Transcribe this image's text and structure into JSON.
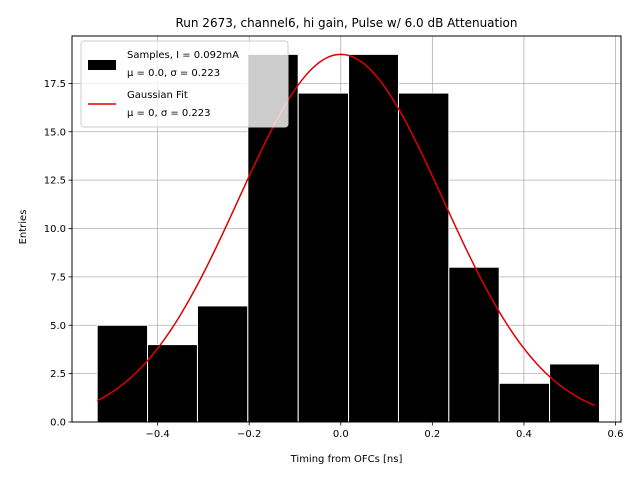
{
  "chart_data": {
    "type": "bar",
    "title": "Run 2673, channel6, hi gain, Pulse w/ 6.0 dB Attenuation",
    "xlabel": "Timing from OFCs [ns]",
    "ylabel": "Entries",
    "xlim": [
      -0.587,
      0.612
    ],
    "ylim": [
      0,
      19.95
    ],
    "x_ticks": [
      -0.4,
      -0.2,
      0.0,
      0.2,
      0.4,
      0.6
    ],
    "x_tick_labels": [
      "−0.4",
      "−0.2",
      "0.0",
      "0.2",
      "0.4",
      "0.6"
    ],
    "y_ticks": [
      0.0,
      2.5,
      5.0,
      7.5,
      10.0,
      12.5,
      15.0,
      17.5
    ],
    "y_tick_labels": [
      "0.0",
      "2.5",
      "5.0",
      "7.5",
      "10.0",
      "12.5",
      "15.0",
      "17.5"
    ],
    "grid": true,
    "bin_edges": [
      -0.532,
      -0.422,
      -0.313,
      -0.203,
      -0.093,
      0.017,
      0.126,
      0.236,
      0.346,
      0.456,
      0.565
    ],
    "counts": [
      5,
      4,
      6,
      19,
      17,
      19,
      17,
      8,
      2,
      3
    ],
    "bar_color": "#000000",
    "bar_edge_color": "#ffffff",
    "fit": {
      "mu": 0.0,
      "sigma": 0.223,
      "amplitude": 19.0,
      "x_range": [
        -0.532,
        0.555
      ],
      "color": "#e00000"
    },
    "legend": {
      "placement": "top-left",
      "entries": [
        {
          "line1": "Samples, I = 0.092mA",
          "line2": "μ = 0.0, σ = 0.223",
          "marker": "patch",
          "color": "#000000"
        },
        {
          "line1": "Gaussian Fit",
          "line2": "μ = 0, σ = 0.223",
          "marker": "line",
          "color": "#e00000"
        }
      ]
    }
  }
}
